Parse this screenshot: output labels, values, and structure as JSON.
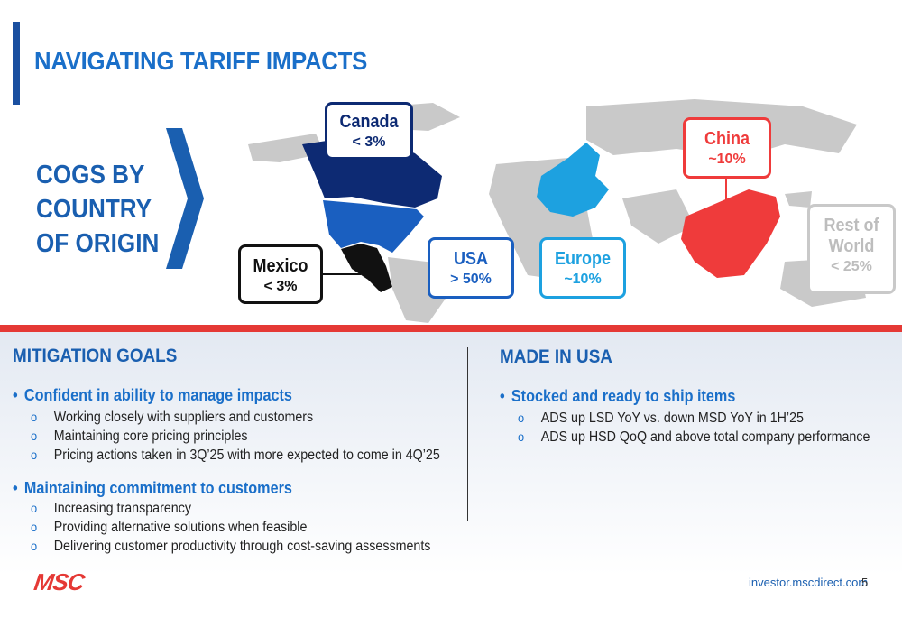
{
  "title": "NAVIGATING TARIFF IMPACTS",
  "cogs_lines": [
    "COGS BY",
    "COUNTRY",
    "OF ORIGIN"
  ],
  "colors": {
    "accent_blue": "#1a6fc9",
    "dark_blue": "#0d2a73",
    "mid_blue": "#1a5fc0",
    "light_blue": "#1da1e0",
    "red": "#e53935",
    "gray": "#c8c8c8",
    "black": "#111111"
  },
  "regions": [
    {
      "name": "Canada",
      "value": "< 3%"
    },
    {
      "name": "Mexico",
      "value": "< 3%"
    },
    {
      "name": "USA",
      "value": "> 50%"
    },
    {
      "name": "Europe",
      "value": "~10%"
    },
    {
      "name": "China",
      "value": "~10%"
    },
    {
      "name": "Rest of World",
      "name_lines": [
        "Rest of",
        "World"
      ],
      "value": "< 25%"
    }
  ],
  "mitigation": {
    "title": "MITIGATION GOALS",
    "bullets": [
      {
        "text": "Confident in ability to manage impacts",
        "subs": [
          "Working closely with suppliers and customers",
          "Maintaining core pricing principles",
          "Pricing actions taken in 3Q’25 with more expected to come in 4Q’25"
        ]
      },
      {
        "text": "Maintaining commitment to customers",
        "subs": [
          "Increasing transparency",
          "Providing alternative solutions when feasible",
          "Delivering customer productivity through cost-saving assessments"
        ]
      }
    ]
  },
  "made_in_usa": {
    "title": "MADE IN USA",
    "bullets": [
      {
        "text": "Stocked and ready to ship items",
        "subs": [
          "ADS up LSD YoY vs. down MSD YoY in 1H’25",
          "ADS up HSD QoQ and above total company performance"
        ]
      }
    ]
  },
  "footer": {
    "url": "investor.mscdirect.com",
    "page": "5",
    "logo": "MSC"
  }
}
